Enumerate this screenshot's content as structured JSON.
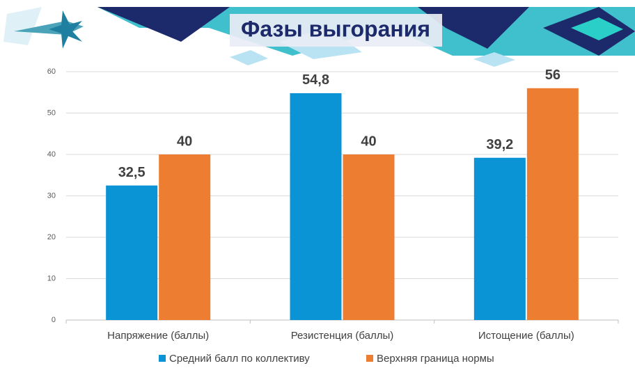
{
  "chart_data": {
    "type": "bar",
    "title": "Фазы выгорания",
    "categories": [
      "Напряжение (баллы)",
      "Резистенция (баллы)",
      "Истощение (баллы)"
    ],
    "series": [
      {
        "name": "Средний балл по коллективу",
        "color": "#0a94d6",
        "values": [
          32.5,
          54.8,
          39.2
        ],
        "value_labels": [
          "32,5",
          "54,8",
          "39,2"
        ]
      },
      {
        "name": "Верхняя граница нормы",
        "color": "#ed7d31",
        "values": [
          40,
          40,
          56
        ]
      }
    ],
    "ylim": [
      0,
      60
    ],
    "yticks": [
      0,
      10,
      20,
      30,
      40,
      50,
      60
    ],
    "grid": true
  }
}
